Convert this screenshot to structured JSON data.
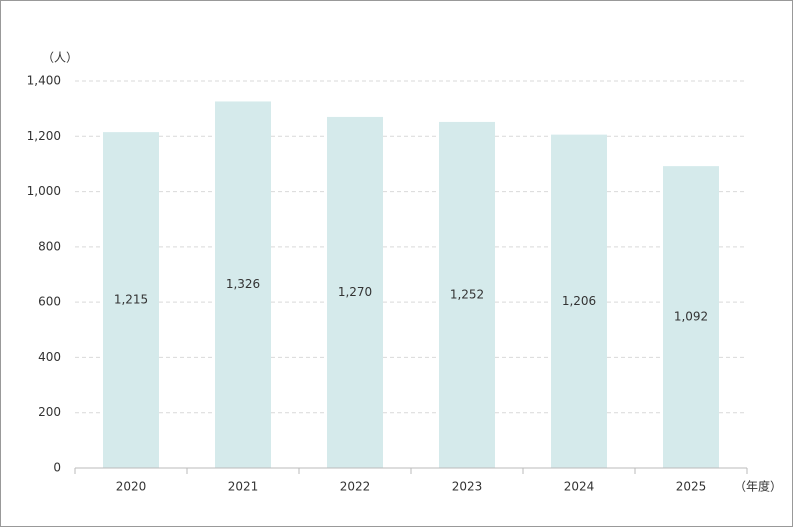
{
  "chart_data": {
    "type": "bar",
    "y_unit_label": "（人）",
    "x_unit_label": "（年度）",
    "categories": [
      "2020",
      "2021",
      "2022",
      "2023",
      "2024",
      "2025"
    ],
    "values": [
      1215,
      1326,
      1270,
      1252,
      1206,
      1092
    ],
    "value_labels": [
      "1,215",
      "1,326",
      "1,270",
      "1,252",
      "1,206",
      "1,092"
    ],
    "color": "#d5eaeb",
    "ylim": [
      0,
      1400
    ],
    "yticks": [
      0,
      200,
      400,
      600,
      800,
      {
        "value": 1000,
        "label": "1,000"
      },
      {
        "value": 1200,
        "label": "1,200"
      },
      {
        "value": 1400,
        "label": "1,400"
      }
    ],
    "grid": true
  }
}
